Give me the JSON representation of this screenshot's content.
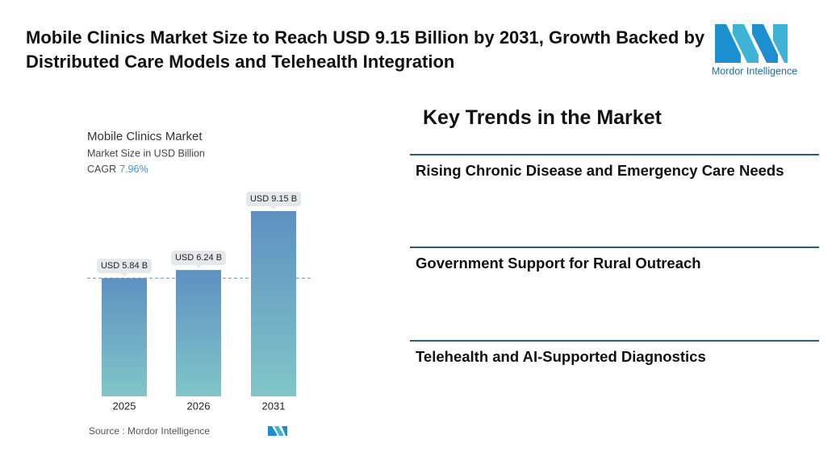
{
  "header": {
    "title": "Mobile Clinics Market Size to Reach USD 9.15 Billion by 2031, Growth Backed by Distributed Care Models and Telehealth Integration",
    "logo_text": "Mordor Intelligence"
  },
  "chart_data": {
    "type": "bar",
    "title": "Mobile Clinics Market",
    "subtitle": "Market Size in USD Billion",
    "cagr_label": "CAGR",
    "cagr_value": "7.96%",
    "categories": [
      "2025",
      "2026",
      "2031"
    ],
    "values": [
      5.84,
      6.24,
      9.15
    ],
    "value_labels": [
      "USD 5.84 B",
      "USD 6.24 B",
      "USD 9.15 B"
    ],
    "gradient": [
      "#5e91c1",
      "#80c6c9"
    ],
    "source": "Source : Mordor Intelligence"
  },
  "trends": {
    "heading": "Key Trends in the Market",
    "items": [
      "Rising Chronic Disease and Emergency Care Needs",
      "Government Support for Rural Outreach",
      "Telehealth and AI-Supported Diagnostics"
    ]
  }
}
